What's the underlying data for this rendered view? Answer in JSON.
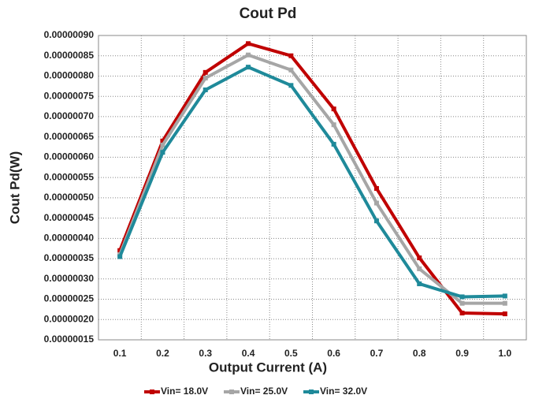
{
  "chart_data": {
    "type": "line",
    "title": "Cout Pd",
    "x_label": "Output Current (A)",
    "y_label": "Cout Pd(W)",
    "categories": [
      "0.1",
      "0.2",
      "0.3",
      "0.4",
      "0.5",
      "0.6",
      "0.7",
      "0.8",
      "0.9",
      "1.0"
    ],
    "series": [
      {
        "name": "Vin= 18.0V",
        "color": "#c00000",
        "values": [
          3.7e-07,
          6.4e-07,
          8.09e-07,
          8.8e-07,
          8.5e-07,
          7.19e-07,
          5.23e-07,
          3.52e-07,
          2.16e-07,
          2.14e-07
        ]
      },
      {
        "name": "Vin= 25.0V",
        "color": "#a6a6a6",
        "values": [
          3.6e-07,
          6.3e-07,
          7.95e-07,
          8.52e-07,
          8.15e-07,
          6.8e-07,
          4.87e-07,
          3.25e-07,
          2.4e-07,
          2.4e-07
        ]
      },
      {
        "name": "Vin= 32.0V",
        "color": "#1f8a9a",
        "values": [
          3.55e-07,
          6.12e-07,
          7.66e-07,
          8.22e-07,
          7.77e-07,
          6.32e-07,
          4.43e-07,
          2.88e-07,
          2.56e-07,
          2.58e-07
        ]
      }
    ],
    "ylim": [
      1.5e-07,
      9e-07
    ],
    "yticks": [
      {
        "value": 1.5e-07,
        "label": "0.00000015"
      },
      {
        "value": 2e-07,
        "label": "0.00000020"
      },
      {
        "value": 2.5e-07,
        "label": "0.00000025"
      },
      {
        "value": 3e-07,
        "label": "0.00000030"
      },
      {
        "value": 3.5e-07,
        "label": "0.00000035"
      },
      {
        "value": 4e-07,
        "label": "0.00000040"
      },
      {
        "value": 4.5e-07,
        "label": "0.00000045"
      },
      {
        "value": 5e-07,
        "label": "0.00000050"
      },
      {
        "value": 5.5e-07,
        "label": "0.00000055"
      },
      {
        "value": 6e-07,
        "label": "0.00000060"
      },
      {
        "value": 6.5e-07,
        "label": "0.00000065"
      },
      {
        "value": 7e-07,
        "label": "0.00000070"
      },
      {
        "value": 7.5e-07,
        "label": "0.00000075"
      },
      {
        "value": 8e-07,
        "label": "0.00000080"
      },
      {
        "value": 8.5e-07,
        "label": "0.00000085"
      },
      {
        "value": 9e-07,
        "label": "0.00000090"
      }
    ],
    "grid": true,
    "legend": "bottom"
  }
}
